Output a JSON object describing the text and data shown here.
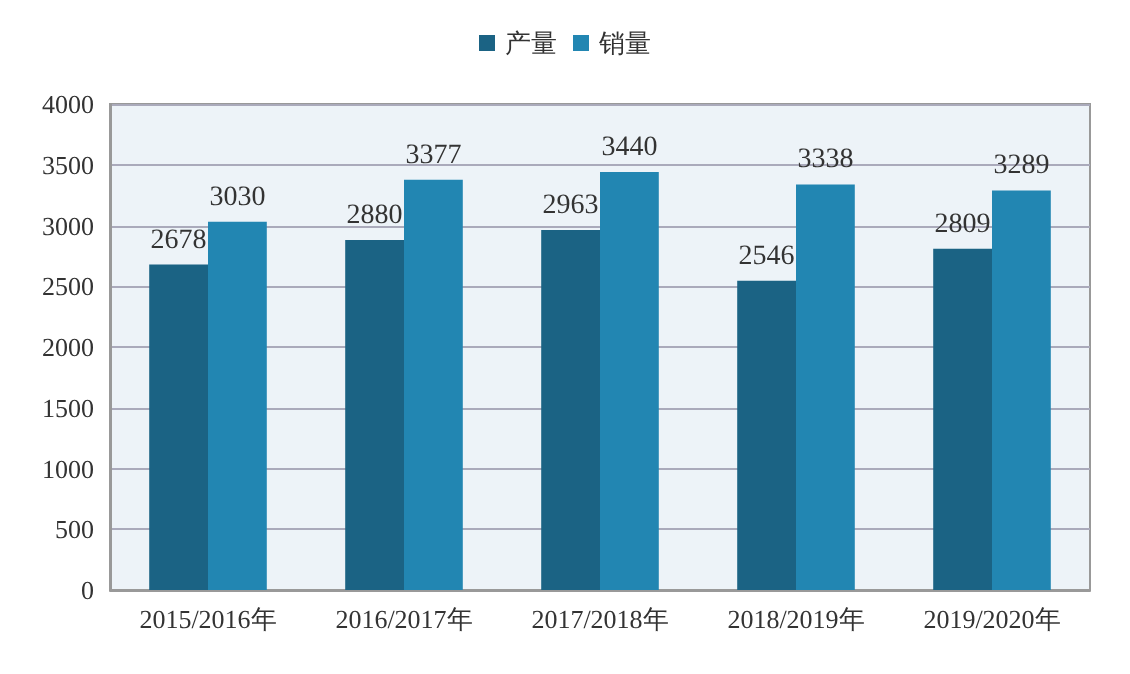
{
  "chart_data": {
    "type": "bar",
    "categories": [
      "2015/2016年",
      "2016/2017年",
      "2017/2018年",
      "2018/2019年",
      "2019/2020年"
    ],
    "series": [
      {
        "name": "产量",
        "color": "#1b6384",
        "values": [
          2678,
          2880,
          2963,
          2546,
          2809
        ]
      },
      {
        "name": "销量",
        "color": "#2286b2",
        "values": [
          3030,
          3377,
          3440,
          3338,
          3289
        ]
      }
    ],
    "ylim": [
      0,
      4000
    ],
    "yticks": [
      0,
      500,
      1000,
      1500,
      2000,
      2500,
      3000,
      3500,
      4000
    ],
    "grid": "y",
    "legend": "top",
    "data_labels": true
  }
}
